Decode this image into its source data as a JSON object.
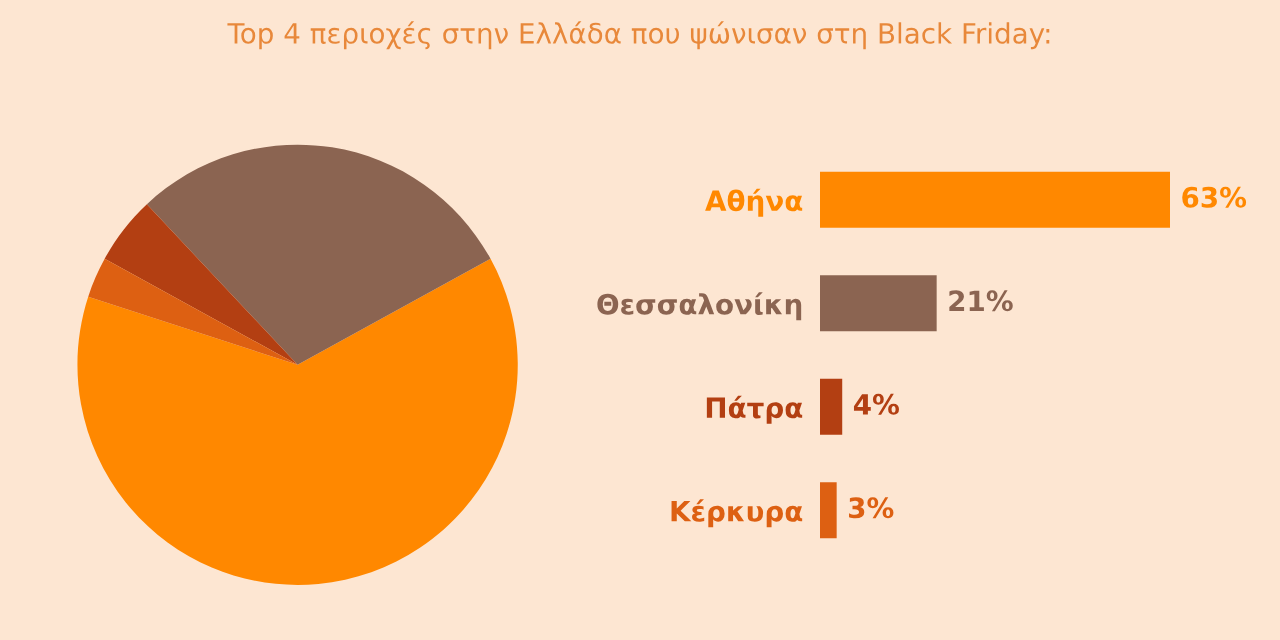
{
  "chart_data": [
    {
      "type": "pie",
      "title": "Top 4 περιοχές στην Ελλάδα που ψώνισαν στη Black Friday:",
      "categories": [
        null,
        null,
        null,
        null
      ],
      "values": [
        63,
        29,
        5,
        3
      ],
      "colors": [
        "#ff8800",
        "#8b6451",
        "#b33f12",
        "#dd6012"
      ]
    },
    {
      "type": "bar",
      "orientation": "horizontal",
      "categories": [
        "Αθήνα",
        "Θεσσαλονίκη",
        "Πάτρα",
        "Κέρκυρα"
      ],
      "values": [
        63,
        21,
        4,
        3
      ],
      "colors": [
        "#ff8800",
        "#8b6451",
        "#b33f12",
        "#dd6012"
      ],
      "value_labels": [
        "63%",
        "21%",
        "4%",
        "3%"
      ]
    }
  ]
}
